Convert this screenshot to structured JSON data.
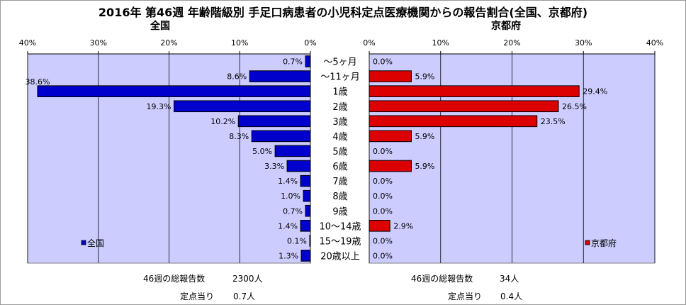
{
  "title": "2016年 第46週 年齢階級別 手足口病患者の小児科定点医療機関からの報告割合(全国、京都府)",
  "colors": {
    "national_bar": "#0000cc",
    "kyoto_bar": "#dd0000",
    "plot_bg": "#ccccff",
    "grid": "#000000"
  },
  "footer": {
    "national_total_label": "46週の総報告数",
    "national_total_value": "2300人",
    "national_per_label": "定点当り",
    "national_per_value": "0.7人",
    "kyoto_total_label": "46週の総報告数",
    "kyoto_total_value": "34人",
    "kyoto_per_label": "定点当り",
    "kyoto_per_value": "0.4人"
  },
  "chart_data": [
    {
      "type": "bar",
      "orientation": "horizontal",
      "direction": "right-to-left",
      "title": "全国",
      "categories": [
        "～5ヶ月",
        "～11ヶ月",
        "1歳",
        "2歳",
        "3歳",
        "4歳",
        "5歳",
        "6歳",
        "7歳",
        "8歳",
        "9歳",
        "10～14歳",
        "15～19歳",
        "20歳以上"
      ],
      "series": [
        {
          "name": "全国",
          "values": [
            0.7,
            8.6,
            38.6,
            19.3,
            10.2,
            8.3,
            5.0,
            3.3,
            1.4,
            1.0,
            0.7,
            1.4,
            0.1,
            1.3
          ],
          "color": "#0000cc"
        }
      ],
      "data_labels": [
        "0.7%",
        "8.6%",
        "38.6%",
        "19.3%",
        "10.2%",
        "8.3%",
        "5.0%",
        "3.3%",
        "1.4%",
        "1.0%",
        "0.7%",
        "1.4%",
        "0.1%",
        "1.3%"
      ],
      "xlim": [
        0,
        40
      ],
      "ticks": [
        0,
        10,
        20,
        30,
        40
      ],
      "tick_labels": [
        "0%",
        "10%",
        "20%",
        "30%",
        "40%"
      ],
      "grid": true,
      "legend_position": "bottom-left"
    },
    {
      "type": "bar",
      "orientation": "horizontal",
      "direction": "left-to-right",
      "title": "京都府",
      "categories": [
        "～5ヶ月",
        "～11ヶ月",
        "1歳",
        "2歳",
        "3歳",
        "4歳",
        "5歳",
        "6歳",
        "7歳",
        "8歳",
        "9歳",
        "10～14歳",
        "15～19歳",
        "20歳以上"
      ],
      "series": [
        {
          "name": "京都府",
          "values": [
            0.0,
            5.9,
            29.4,
            26.5,
            23.5,
            5.9,
            0.0,
            5.9,
            0.0,
            0.0,
            0.0,
            2.9,
            0.0,
            0.0
          ],
          "color": "#dd0000"
        }
      ],
      "data_labels": [
        "0.0%",
        "5.9%",
        "29.4%",
        "26.5%",
        "23.5%",
        "5.9%",
        "0.0%",
        "5.9%",
        "0.0%",
        "0.0%",
        "0.0%",
        "2.9%",
        "0.0%",
        "0.0%"
      ],
      "xlim": [
        0,
        40
      ],
      "ticks": [
        0,
        10,
        20,
        30,
        40
      ],
      "tick_labels": [
        "0%",
        "10%",
        "20%",
        "30%",
        "40%"
      ],
      "grid": true,
      "legend_position": "bottom-right"
    }
  ]
}
